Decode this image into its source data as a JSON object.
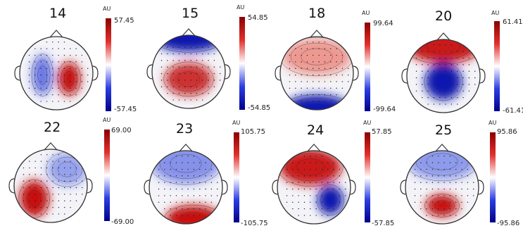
{
  "chart_data": [
    {
      "type": "heatmap",
      "title": "14",
      "unit": "AU",
      "range": [
        -57.45,
        57.45
      ],
      "max_label": "57.45",
      "min_label": "-57.45",
      "blobs": [
        {
          "x": -0.38,
          "y": 0.05,
          "rx": 0.28,
          "ry": 0.55,
          "value": -0.75
        },
        {
          "x": 0.35,
          "y": 0.15,
          "rx": 0.3,
          "ry": 0.45,
          "value": 1.0
        }
      ]
    },
    {
      "type": "heatmap",
      "title": "15",
      "unit": "AU",
      "range": [
        -54.85,
        54.85
      ],
      "max_label": "54.85",
      "min_label": "-54.85",
      "blobs": [
        {
          "x": 0.0,
          "y": -0.9,
          "rx": 0.9,
          "ry": 0.35,
          "value": -1.0
        },
        {
          "x": 0.0,
          "y": 0.2,
          "rx": 0.65,
          "ry": 0.45,
          "value": 0.85
        }
      ]
    },
    {
      "type": "heatmap",
      "title": "18",
      "unit": "AU",
      "range": [
        -99.64,
        99.64
      ],
      "max_label": "99.64",
      "min_label": "-99.64",
      "blobs": [
        {
          "x": 0.0,
          "y": -0.45,
          "rx": 0.95,
          "ry": 0.5,
          "value": 0.55
        },
        {
          "x": 0.0,
          "y": 0.92,
          "rx": 0.85,
          "ry": 0.32,
          "value": -1.0
        }
      ]
    },
    {
      "type": "heatmap",
      "title": "20",
      "unit": "AU",
      "range": [
        -61.41,
        61.41
      ],
      "max_label": "61.41",
      "min_label": "-61.41",
      "blobs": [
        {
          "x": 0.0,
          "y": -0.8,
          "rx": 1.0,
          "ry": 0.45,
          "value": 0.95
        },
        {
          "x": 0.0,
          "y": 0.15,
          "rx": 0.5,
          "ry": 0.5,
          "value": -1.0
        }
      ]
    },
    {
      "type": "heatmap",
      "title": "22",
      "unit": "AU",
      "range": [
        -69.0,
        69.0
      ],
      "max_label": "69.00",
      "min_label": "-69.00",
      "blobs": [
        {
          "x": -0.45,
          "y": 0.35,
          "rx": 0.4,
          "ry": 0.5,
          "value": 1.0
        },
        {
          "x": 0.45,
          "y": -0.45,
          "rx": 0.55,
          "ry": 0.45,
          "value": -0.5
        }
      ]
    },
    {
      "type": "heatmap",
      "title": "23",
      "unit": "AU",
      "range": [
        -105.75,
        105.75
      ],
      "max_label": "105.75",
      "min_label": "-105.75",
      "blobs": [
        {
          "x": 0.0,
          "y": -0.65,
          "rx": 0.95,
          "ry": 0.55,
          "value": -0.6
        },
        {
          "x": 0.2,
          "y": 0.85,
          "rx": 0.75,
          "ry": 0.35,
          "value": 1.0
        }
      ]
    },
    {
      "type": "heatmap",
      "title": "24",
      "unit": "AU",
      "range": [
        -57.85,
        57.85
      ],
      "max_label": "57.85",
      "min_label": "-57.85",
      "blobs": [
        {
          "x": -0.1,
          "y": -0.55,
          "rx": 0.85,
          "ry": 0.5,
          "value": 0.95
        },
        {
          "x": 0.45,
          "y": 0.35,
          "rx": 0.35,
          "ry": 0.4,
          "value": -1.0
        }
      ]
    },
    {
      "type": "heatmap",
      "title": "25",
      "unit": "AU",
      "range": [
        -95.86,
        95.86
      ],
      "max_label": "95.86",
      "min_label": "-95.86",
      "blobs": [
        {
          "x": 0.0,
          "y": -0.7,
          "rx": 0.95,
          "ry": 0.5,
          "value": -0.55
        },
        {
          "x": 0.0,
          "y": 0.5,
          "rx": 0.45,
          "ry": 0.3,
          "value": 1.0
        }
      ]
    }
  ],
  "colors": {
    "positive": "#8b0000",
    "negative": "#00008b",
    "neutral": "#ffffff",
    "contour": "#333333"
  }
}
